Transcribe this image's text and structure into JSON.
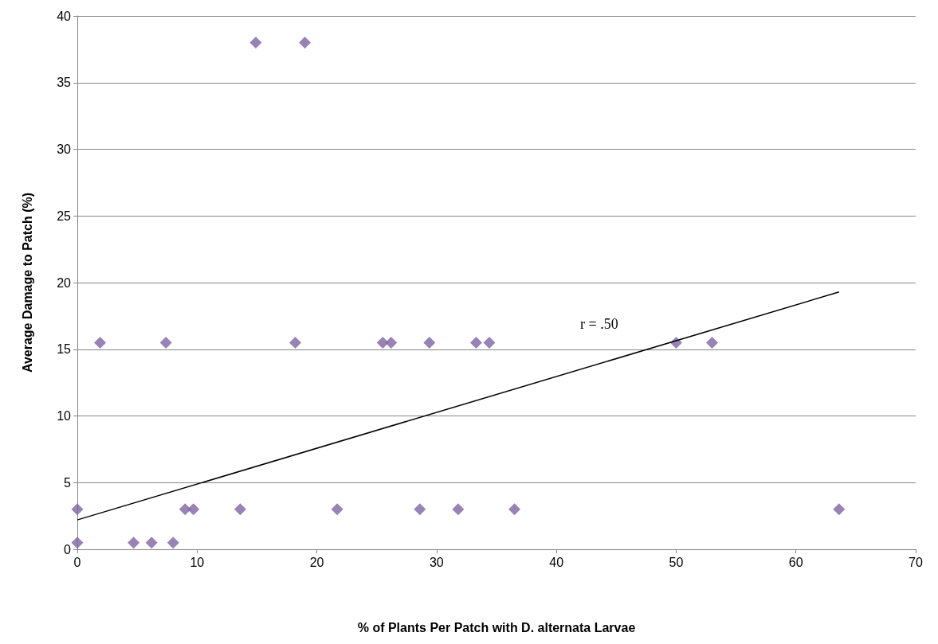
{
  "chart_data": {
    "type": "scatter",
    "xlabel": "% of Plants Per Patch with D. alternata Larvae",
    "ylabel": "Average Damage to Patch (%)",
    "xlim": [
      0,
      70
    ],
    "xticks": [
      0,
      10,
      20,
      30,
      40,
      50,
      60,
      70
    ],
    "ylim": [
      0,
      40
    ],
    "yticks": [
      0,
      5,
      10,
      15,
      20,
      25,
      30,
      35,
      40
    ],
    "grid": "y",
    "marker": "diamond",
    "series": [
      {
        "color": "#8064a2",
        "x": [
          0,
          0,
          1.9,
          4.7,
          6.2,
          7.4,
          8.0,
          9.0,
          9.7,
          13.6,
          14.9,
          19.0,
          18.2,
          21.7,
          25.5,
          26.2,
          28.6,
          29.4,
          31.8,
          33.3,
          34.4,
          36.5,
          50,
          53,
          63.6
        ],
        "values": [
          3,
          0.5,
          15.5,
          0.5,
          0.5,
          15.5,
          0.5,
          3,
          3,
          3,
          38,
          38,
          15.5,
          3,
          15.5,
          15.5,
          3,
          15.5,
          3,
          15.5,
          15.5,
          3,
          15.5,
          15.5,
          3
        ]
      },
      {
        "type": "line",
        "color": "#000000",
        "x": [
          0,
          63.6
        ],
        "values": [
          2.2,
          19.3
        ],
        "marker": "none"
      }
    ],
    "annotations": [
      "r = .50"
    ]
  }
}
